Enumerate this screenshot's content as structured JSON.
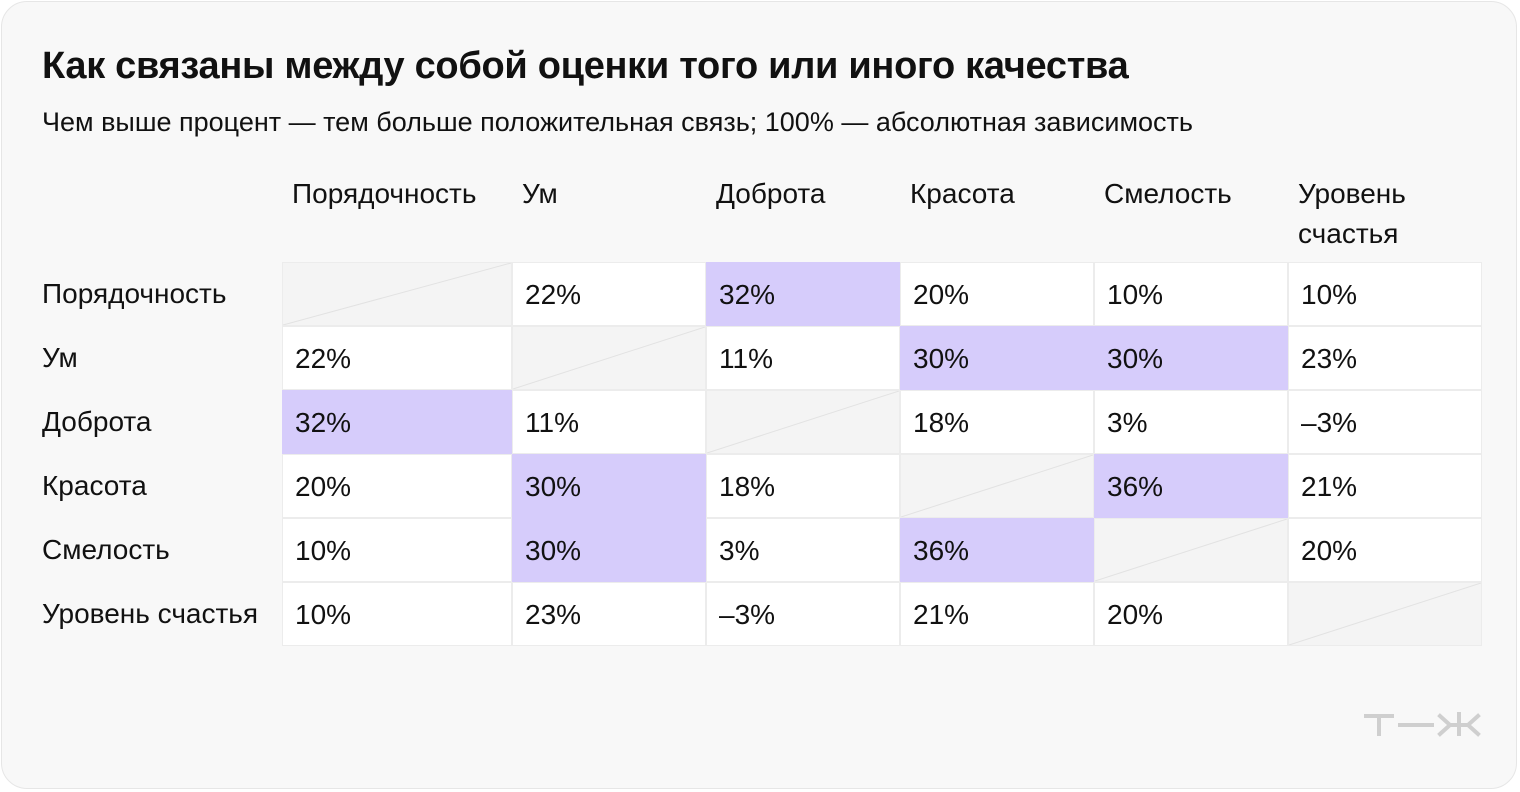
{
  "title": "Как связаны между собой оценки того или иного качества",
  "subtitle": "Чем выше процент — тем больше положительная связь; 100% — абсолютная зависимость",
  "logo_icon": "tzh-logo",
  "highlight_color": "#d6ccfb",
  "chart_data": {
    "type": "table",
    "title": "Как связаны между собой оценки того или иного качества",
    "subtitle": "Чем выше процент — тем больше положительная связь; 100% — абсолютная зависимость",
    "columns": [
      "Порядочность",
      "Ум",
      "Доброта",
      "Красота",
      "Смелость",
      "Уровень счастья"
    ],
    "rows": [
      {
        "label": "Порядочность",
        "values": [
          "",
          "22%",
          "32%",
          "20%",
          "10%",
          "10%"
        ]
      },
      {
        "label": "Ум",
        "values": [
          "22%",
          "",
          "11%",
          "30%",
          "30%",
          "23%"
        ]
      },
      {
        "label": "Доброта",
        "values": [
          "32%",
          "11%",
          "",
          "18%",
          "3%",
          "–3%"
        ]
      },
      {
        "label": "Красота",
        "values": [
          "20%",
          "30%",
          "18%",
          "",
          "36%",
          "21%"
        ]
      },
      {
        "label": "Смелость",
        "values": [
          "10%",
          "30%",
          "3%",
          "36%",
          "",
          "20%"
        ]
      },
      {
        "label": "Уровень счастья",
        "values": [
          "10%",
          "23%",
          "–3%",
          "21%",
          "20%",
          ""
        ]
      }
    ],
    "highlighted_cells": [
      [
        0,
        2
      ],
      [
        1,
        3
      ],
      [
        1,
        4
      ],
      [
        2,
        0
      ],
      [
        3,
        1
      ],
      [
        3,
        4
      ],
      [
        4,
        1
      ],
      [
        4,
        3
      ]
    ]
  }
}
